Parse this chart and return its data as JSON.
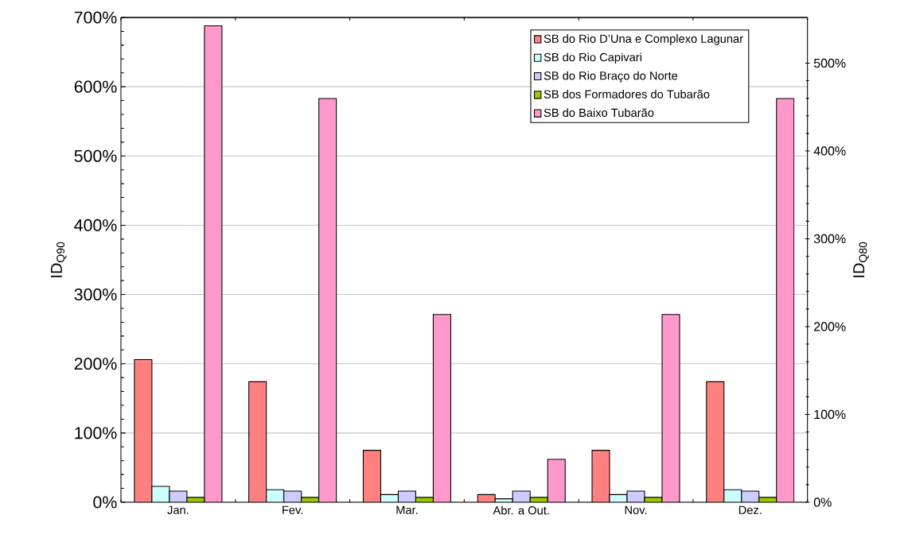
{
  "chart_data": {
    "type": "bar",
    "ylabel": "ID$_{Q90}$",
    "y2label": "ID$_{Q80}$",
    "categories": [
      "Jan.",
      "Fev.",
      "Mar.",
      "Abr. a Out.",
      "Nov.",
      "Dez."
    ],
    "series": [
      {
        "name": "SB do Rio D’Una e Complexo Lagunar",
        "color": "#ff8080",
        "values": [
          206,
          174,
          75,
          11,
          75,
          174
        ]
      },
      {
        "name": "SB do Rio Capivari",
        "color": "#ccffff",
        "values": [
          23,
          18,
          11,
          5,
          11,
          18
        ]
      },
      {
        "name": "SB do Rio Braço do Norte",
        "color": "#ccccff",
        "values": [
          16,
          16,
          16,
          16,
          16,
          16
        ]
      },
      {
        "name": "SB dos Formadores do Tubarão",
        "color": "#99cc00",
        "values": [
          7,
          7,
          7,
          7,
          7,
          7
        ]
      },
      {
        "name": "SB do Baixo Tubarão",
        "color": "#ff99cc",
        "values": [
          688,
          583,
          271,
          62,
          271,
          583
        ]
      }
    ],
    "ylim": [
      0,
      700
    ],
    "yticks": [
      {
        "value": 0,
        "label": "0%"
      },
      {
        "value": 100,
        "label": "100%"
      },
      {
        "value": 200,
        "label": "200%"
      },
      {
        "value": 300,
        "label": "300%"
      },
      {
        "value": 400,
        "label": "400%"
      },
      {
        "value": 500,
        "label": "500%"
      },
      {
        "value": 600,
        "label": "600%"
      },
      {
        "value": 700,
        "label": "700%"
      }
    ],
    "y2lim": [
      0,
      552
    ],
    "y2ticks": [
      {
        "value": 0,
        "label": "0%"
      },
      {
        "value": 100,
        "label": "100%"
      },
      {
        "value": 200,
        "label": "200%"
      },
      {
        "value": 300,
        "label": "300%"
      },
      {
        "value": 400,
        "label": "400%"
      },
      {
        "value": 500,
        "label": "500%"
      }
    ],
    "grid": "y",
    "legend": "top right"
  }
}
